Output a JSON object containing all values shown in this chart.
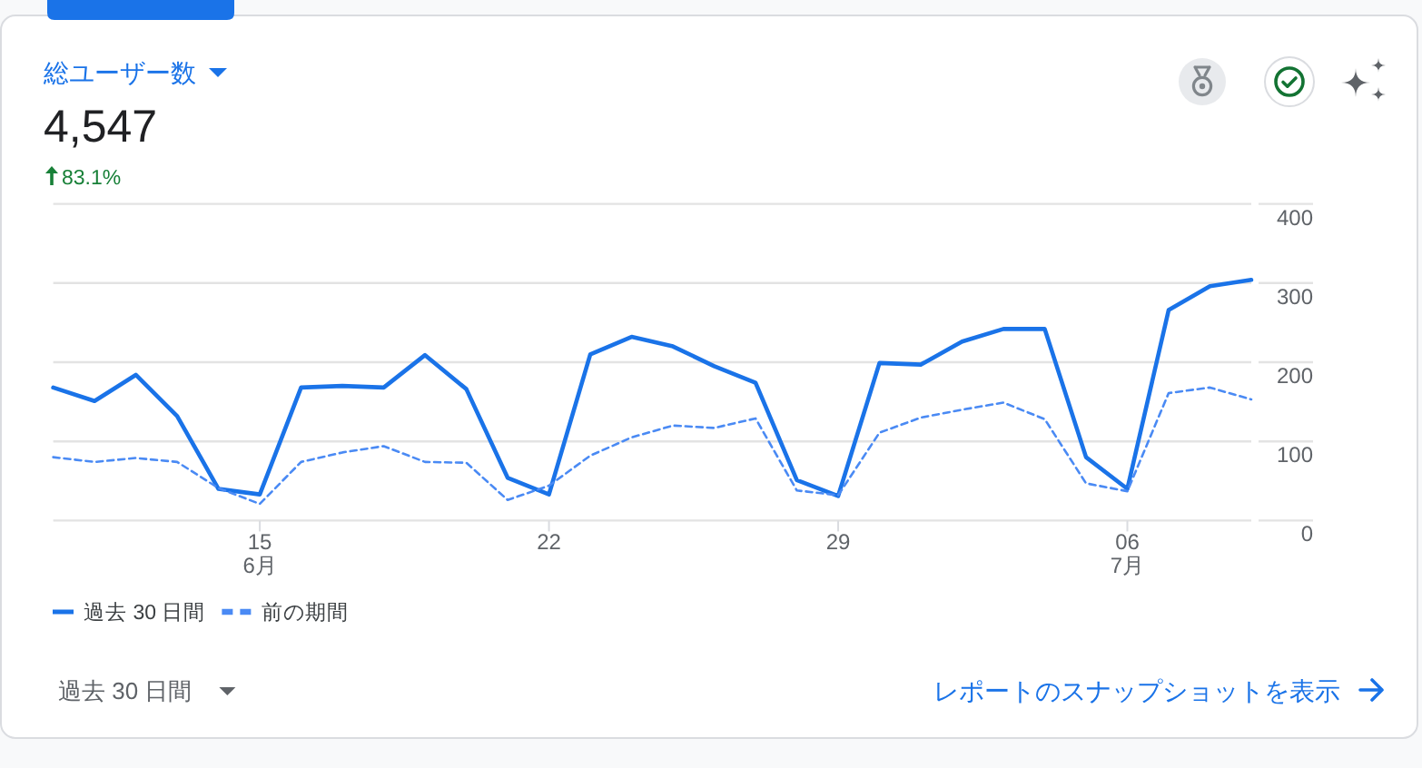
{
  "chart_data": {
    "type": "line",
    "title": "総ユーザー数",
    "subtitle": "4,547",
    "annotations": [
      "83.1%",
      "過去 30 日間",
      "レポートのスナップショットを表示"
    ],
    "x": [
      "--06-10",
      "--06-11",
      "--06-12",
      "--06-13",
      "--06-14",
      "--06-15",
      "--06-16",
      "--06-17",
      "--06-18",
      "--06-19",
      "--06-20",
      "--06-21",
      "--06-22",
      "--06-23",
      "--06-24",
      "--06-25",
      "--06-26",
      "--06-27",
      "--06-28",
      "--06-29",
      "--06-30",
      "--07-01",
      "--07-02",
      "--07-03",
      "--07-04",
      "--07-05",
      "--07-06",
      "--07-07",
      "--07-08",
      "--07-09"
    ],
    "xlim": [
      "--06-10",
      "--07-09"
    ],
    "xticks": [
      {
        "value": "--06-15",
        "label": "15\n6月"
      },
      {
        "value": "--06-22",
        "label": "22"
      },
      {
        "value": "--06-29",
        "label": "29"
      },
      {
        "value": "--07-06",
        "label": "06\n7月"
      }
    ],
    "ylim": [
      0,
      400
    ],
    "yticks": [
      0,
      100,
      200,
      300,
      400
    ],
    "grid": "y",
    "legend": "bottom left",
    "series": [
      {
        "name": "過去 30 日間",
        "color": "#1a73e8",
        "line_style": "solid",
        "values": [
          168,
          151,
          184,
          132,
          40,
          33,
          168,
          170,
          168,
          209,
          166,
          54,
          33,
          210,
          232,
          220,
          195,
          174,
          51,
          31,
          199,
          197,
          226,
          242,
          242,
          80,
          40,
          266,
          296,
          304
        ]
      },
      {
        "name": "前の期間",
        "color": "#4a8af4",
        "line_style": "dashed",
        "values": [
          80,
          74,
          79,
          74,
          41,
          21,
          74,
          86,
          94,
          74,
          73,
          26,
          44,
          82,
          105,
          120,
          117,
          129,
          38,
          32,
          111,
          130,
          140,
          149,
          128,
          47,
          37,
          161,
          168,
          153
        ]
      }
    ]
  }
}
